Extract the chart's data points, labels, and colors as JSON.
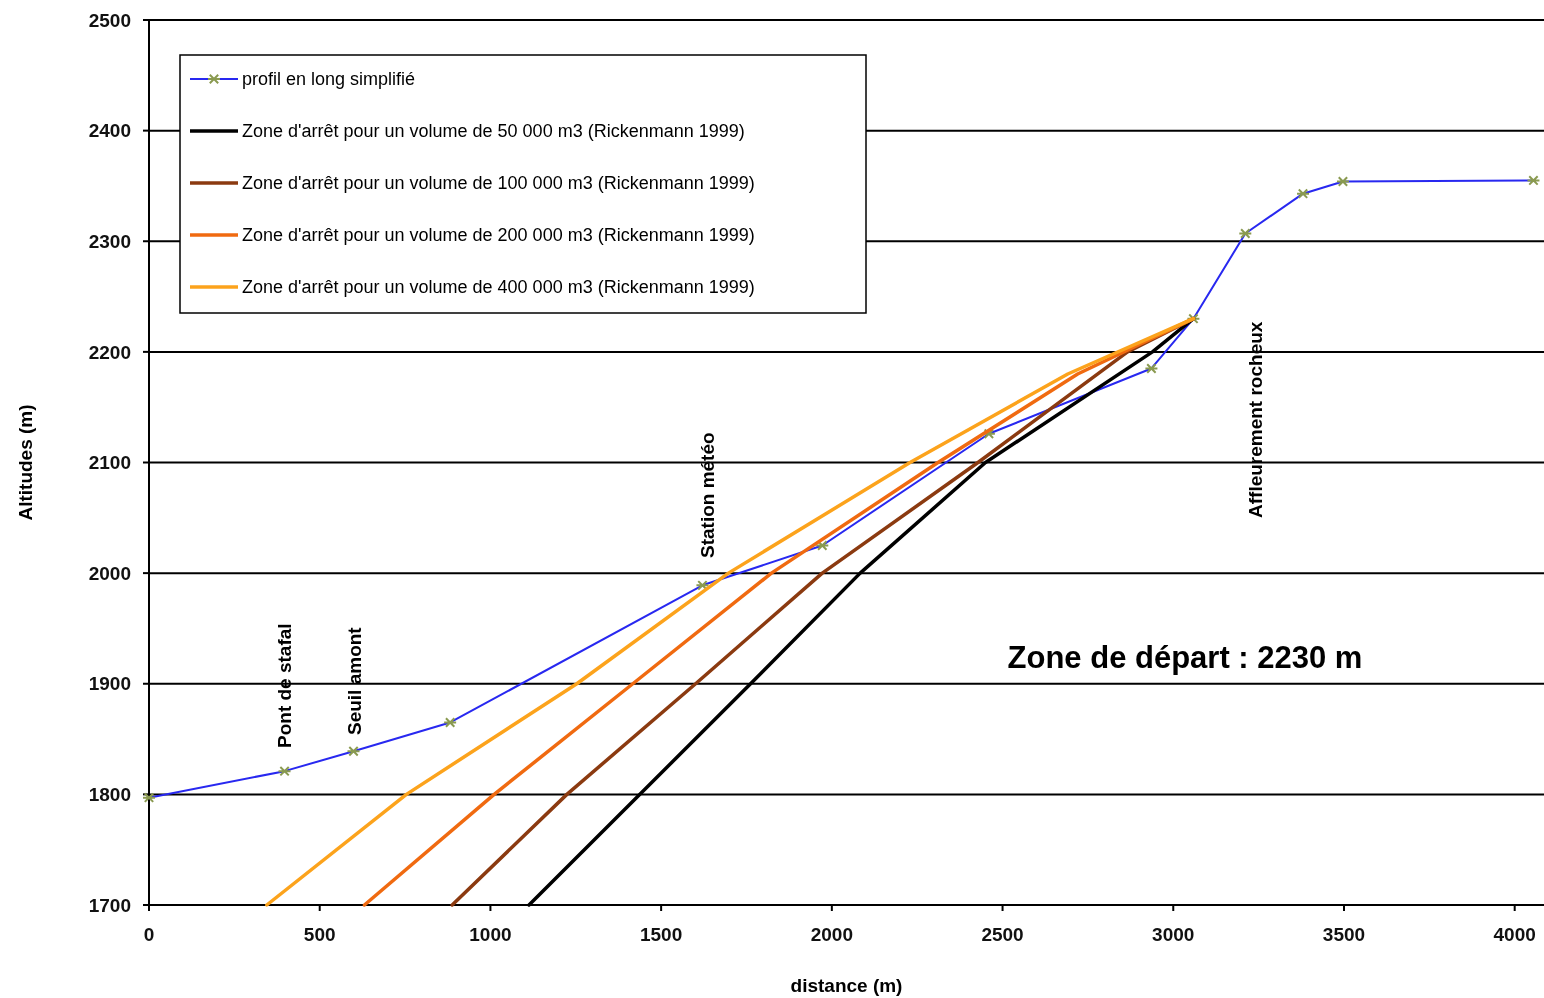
{
  "chart_data": {
    "type": "line",
    "xlabel": "distance (m)",
    "ylabel": "Altitudes (m)",
    "xlim": [
      0,
      4080
    ],
    "ylim": [
      1700,
      2500
    ],
    "xticks": [
      0,
      500,
      1000,
      1500,
      2000,
      2500,
      3000,
      3500,
      4000
    ],
    "yticks": [
      1700,
      1800,
      1900,
      2000,
      2100,
      2200,
      2300,
      2400,
      2500
    ],
    "grid": "y",
    "legend": "top left",
    "line_style": "solid",
    "series": [
      {
        "name": "profil en long simplifié",
        "color": "#2828f0",
        "marker": "cross",
        "x": [
          0,
          397,
          599,
          882,
          1621,
          1972,
          2460,
          2936,
          3059,
          3211,
          3380,
          3497,
          4055
        ],
        "values": [
          1797,
          1821,
          1839,
          1865,
          1989,
          2025,
          2126,
          2185,
          2230,
          2307,
          2343,
          2354,
          2355
        ]
      },
      {
        "name": "Zone d'arrêt pour un volume de 50 000 m3 (Rickenmann 1999)",
        "color": "#000000",
        "marker": "none",
        "x": [
          1113,
          1762,
          2083,
          2450,
          2939,
          3059
        ],
        "values": [
          1700,
          1900,
          2000,
          2100,
          2200,
          2230
        ]
      },
      {
        "name": "Zone d'arrêt pour un volume de 100 000 m3 (Rickenmann 1999)",
        "color": "#8b3a10",
        "marker": "none",
        "x": [
          888,
          1224,
          1601,
          1972,
          2428,
          2866,
          3059
        ],
        "values": [
          1700,
          1800,
          1900,
          2000,
          2100,
          2200,
          2230
        ]
      },
      {
        "name": "Zone d'arrêt pour un volume de 200 000 m3 (Rickenmann 1999)",
        "color": "#f06a10",
        "marker": "none",
        "x": [
          631,
          1011,
          1417,
          1823,
          2311,
          2720,
          3059
        ],
        "values": [
          1700,
          1800,
          1900,
          2000,
          2100,
          2180,
          2230
        ]
      },
      {
        "name": "Zone d'arrêt pour un volume de 400 000 m3 (Rickenmann 1999)",
        "color": "#fca31c",
        "marker": "none",
        "x": [
          345,
          754,
          1253,
          1697,
          2229,
          2691,
          3059
        ],
        "values": [
          1700,
          1800,
          1900,
          2000,
          2100,
          2180,
          2230
        ]
      }
    ],
    "annotations": [
      "Pont de stafal",
      "Seuil amont",
      "Station météo",
      "Affleurement rocheux",
      "Zone de départ : 2230 m"
    ]
  }
}
